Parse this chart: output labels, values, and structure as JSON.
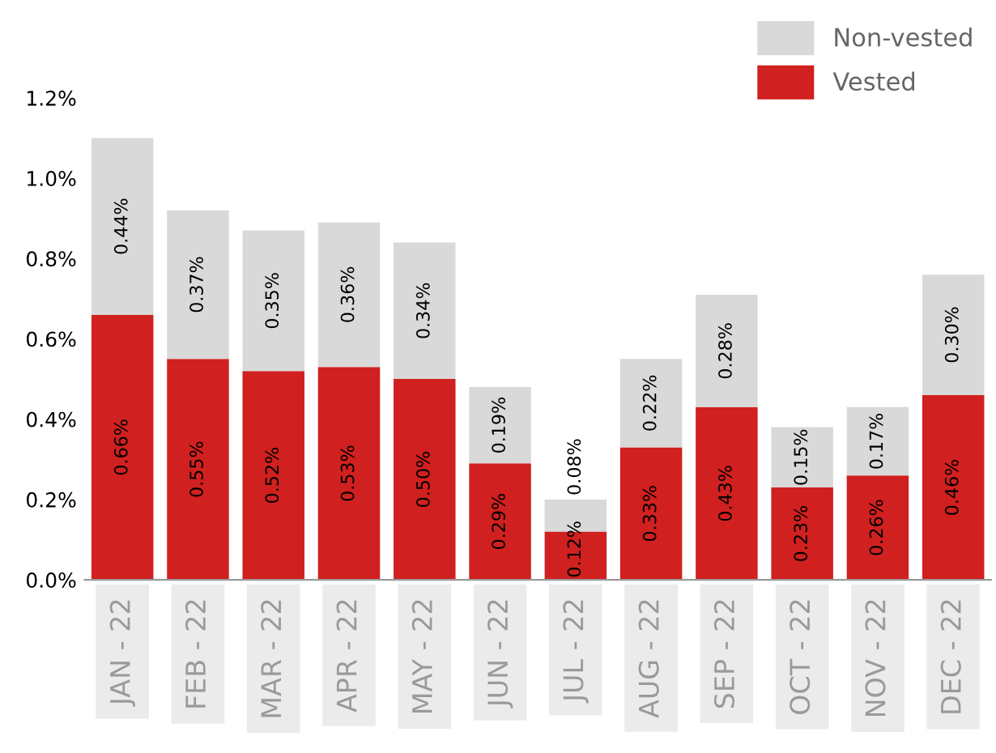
{
  "chart_data": {
    "type": "bar",
    "stacked": true,
    "categories": [
      "JAN - 22",
      "FEB - 22",
      "MAR - 22",
      "APR - 22",
      "MAY - 22",
      "JUN - 22",
      "JUL - 22",
      "AUG - 22",
      "SEP - 22",
      "OCT - 22",
      "NOV - 22",
      "DEC - 22"
    ],
    "series": [
      {
        "name": "Vested",
        "color": "#d0201f",
        "values": [
          0.66,
          0.55,
          0.52,
          0.53,
          0.5,
          0.29,
          0.12,
          0.33,
          0.43,
          0.23,
          0.26,
          0.46
        ],
        "value_labels": [
          "0.66%",
          "0.55%",
          "0.52%",
          "0.53%",
          "0.50%",
          "0.29%",
          "0.12%",
          "0.33%",
          "0.43%",
          "0.23%",
          "0.26%",
          "0.46%"
        ]
      },
      {
        "name": "Non-vested",
        "color": "#d9d9d9",
        "values": [
          0.44,
          0.37,
          0.35,
          0.36,
          0.34,
          0.19,
          0.08,
          0.22,
          0.28,
          0.15,
          0.17,
          0.3
        ],
        "value_labels": [
          "0.44%",
          "0.37%",
          "0.35%",
          "0.36%",
          "0.34%",
          "0.19%",
          "0.08%",
          "0.22%",
          "0.28%",
          "0.15%",
          "0.17%",
          "0.30%"
        ]
      }
    ],
    "ylim": [
      0,
      1.2
    ],
    "yticks": [
      {
        "value": 0,
        "label": "0.0%"
      },
      {
        "value": 0.2,
        "label": "0.2%"
      },
      {
        "value": 0.4,
        "label": "0.4%"
      },
      {
        "value": 0.6,
        "label": "0.6%"
      },
      {
        "value": 0.8,
        "label": "0.8%"
      },
      {
        "value": 1.0,
        "label": "1.0%"
      },
      {
        "value": 1.2,
        "label": "1.2%"
      }
    ],
    "legend": "top right",
    "grid": false
  }
}
